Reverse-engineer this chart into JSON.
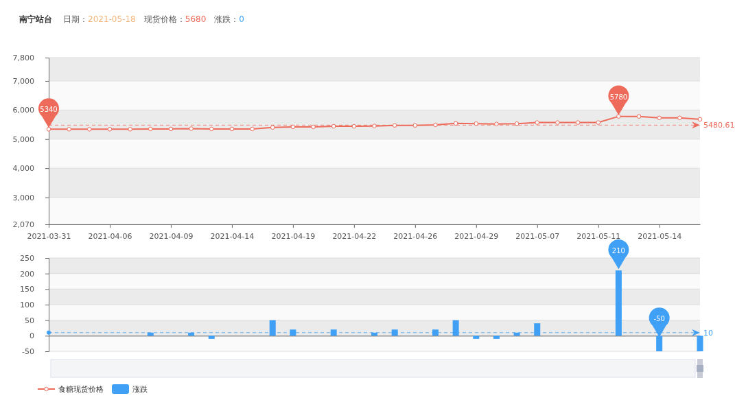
{
  "chart_data": [
    {
      "type": "line",
      "title": "南宁站台",
      "subtitle": "日期：2021-05-18　现货价格：5680　涨跌：0",
      "categories": [
        "2021-03-31",
        null,
        null,
        "2021-04-06",
        null,
        null,
        "2021-04-09",
        null,
        null,
        "2021-04-14",
        null,
        null,
        "2021-04-19",
        null,
        null,
        "2021-04-22",
        null,
        null,
        "2021-04-26",
        null,
        null,
        "2021-04-29",
        null,
        null,
        "2021-05-07",
        null,
        null,
        "2021-05-11",
        null,
        null,
        "2021-05-14",
        null,
        null
      ],
      "series": [
        {
          "name": "食糖现货价格",
          "color": "#ee6a5a",
          "values": [
            5340,
            5340,
            5340,
            5340,
            5340,
            5350,
            5350,
            5360,
            5350,
            5350,
            5350,
            5400,
            5420,
            5420,
            5440,
            5440,
            5450,
            5470,
            5470,
            5490,
            5540,
            5530,
            5520,
            5530,
            5570,
            5570,
            5570,
            5570,
            5780,
            5780,
            5730,
            5730,
            5680
          ],
          "value_labels": [
            "5340",
            null,
            null,
            null,
            null,
            null,
            null,
            null,
            null,
            null,
            null,
            null,
            null,
            null,
            null,
            null,
            null,
            null,
            null,
            null,
            null,
            null,
            null,
            null,
            null,
            null,
            null,
            null,
            "5780",
            null,
            null,
            null,
            null
          ]
        }
      ],
      "ylim": [
        2070,
        7800
      ],
      "yticks": [
        {
          "value": 2070,
          "label": "2,070"
        },
        {
          "value": 3000,
          "label": "3,000"
        },
        {
          "value": 4000,
          "label": "4,000"
        },
        {
          "value": 5000,
          "label": "5,000"
        },
        {
          "value": 6000,
          "label": "6,000"
        },
        {
          "value": 7000,
          "label": "7,000"
        },
        {
          "value": 7800,
          "label": "7,800"
        }
      ],
      "ref_lines": [
        {
          "axis": "y",
          "value": 5480.61,
          "label": "5480.61",
          "color": "#ee6a5a",
          "line_style": "dashed"
        }
      ],
      "grid": "y",
      "marker": "circle",
      "legend": "bottom left"
    },
    {
      "type": "bar",
      "categories": [
        "2021-03-31",
        null,
        null,
        "2021-04-06",
        null,
        null,
        "2021-04-09",
        null,
        null,
        "2021-04-14",
        null,
        null,
        "2021-04-19",
        null,
        null,
        "2021-04-22",
        null,
        null,
        "2021-04-26",
        null,
        null,
        "2021-04-29",
        null,
        null,
        "2021-05-07",
        null,
        null,
        "2021-05-11",
        null,
        null,
        "2021-05-14",
        null,
        null
      ],
      "series": [
        {
          "name": "涨跌",
          "color": "#3fa0f5",
          "values": [
            0,
            0,
            0,
            0,
            0,
            10,
            0,
            10,
            -10,
            0,
            0,
            50,
            20,
            0,
            20,
            0,
            10,
            20,
            0,
            20,
            50,
            -10,
            -10,
            10,
            40,
            0,
            0,
            0,
            210,
            0,
            -50,
            0,
            -50
          ],
          "value_labels": [
            null,
            null,
            null,
            null,
            null,
            null,
            null,
            null,
            null,
            null,
            null,
            null,
            null,
            null,
            null,
            null,
            null,
            null,
            null,
            null,
            null,
            null,
            null,
            null,
            null,
            null,
            null,
            null,
            "210",
            null,
            "-50",
            null,
            null
          ]
        }
      ],
      "ylim": [
        -50,
        250
      ],
      "yticks": [
        -50,
        0,
        50,
        100,
        150,
        200,
        250
      ],
      "ref_lines": [
        {
          "axis": "y",
          "value": 10,
          "label": "10",
          "color": "#3fa0f5",
          "line_style": "dashed"
        }
      ],
      "grid": "y",
      "tick_labels": "y",
      "legend": "bottom left"
    }
  ]
}
